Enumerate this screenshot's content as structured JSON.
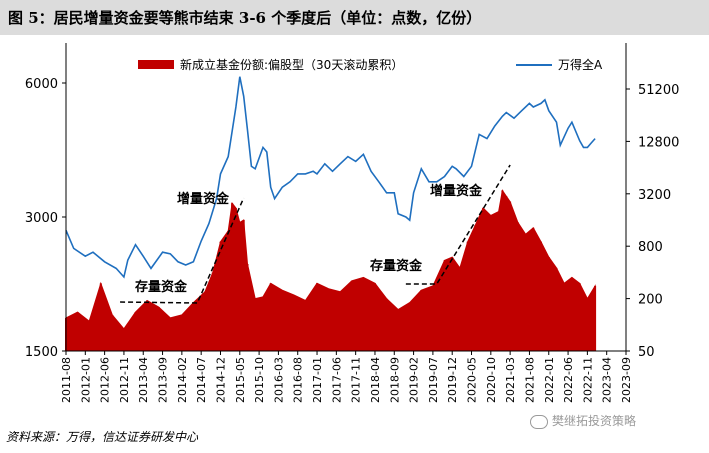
{
  "title": "图 5：居民增量资金要等熊市结束 3-6 个季度后（单位：点数，亿份）",
  "source": "资料来源：万得，信达证券研发中心",
  "watermark": "樊继拓投资策略",
  "chart_data": {
    "type": "bar+line",
    "x_ticks": [
      "2011-08",
      "2012-01",
      "2012-06",
      "2012-11",
      "2013-04",
      "2013-09",
      "2014-02",
      "2014-07",
      "2014-12",
      "2015-05",
      "2015-10",
      "2016-03",
      "2016-08",
      "2017-01",
      "2017-06",
      "2017-11",
      "2018-04",
      "2018-09",
      "2019-02",
      "2019-07",
      "2019-12",
      "2020-05",
      "2020-10",
      "2021-03",
      "2021-08",
      "2022-01",
      "2022-06",
      "2022-11",
      "2023-04",
      "2023-09"
    ],
    "left_axis": {
      "ticks": [
        "6000",
        "3000",
        "1500"
      ],
      "values": [
        6000,
        3000,
        1500
      ],
      "scale": "log"
    },
    "right_axis": {
      "ticks": [
        "51200",
        "12800",
        "3200",
        "800",
        "200",
        "50"
      ],
      "values": [
        51200,
        12800,
        3200,
        800,
        200,
        50
      ],
      "scale": "log"
    },
    "legend": {
      "bar": "新成立基金份额:偏股型（30天滚动累积）",
      "line": "万得全A",
      "position": "top"
    },
    "colors": {
      "bar": "#c00000",
      "line": "#1f6fbf",
      "dashed": "#000000"
    },
    "annotations": [
      {
        "text": "存量资金",
        "x": "2013-06"
      },
      {
        "text": "增量资金",
        "x": "2014-12"
      },
      {
        "text": "存量资金",
        "x": "2019-03"
      },
      {
        "text": "增量资金",
        "x": "2020-09"
      }
    ],
    "series": [
      {
        "name": "万得全A",
        "x": [
          "2011-08",
          "2011-10",
          "2012-01",
          "2012-03",
          "2012-06",
          "2012-09",
          "2012-11",
          "2012-12",
          "2013-02",
          "2013-04",
          "2013-06",
          "2013-09",
          "2013-11",
          "2014-01",
          "2014-03",
          "2014-05",
          "2014-07",
          "2014-09",
          "2014-11",
          "2014-12",
          "2015-02",
          "2015-04",
          "2015-05",
          "2015-06",
          "2015-07",
          "2015-08",
          "2015-09",
          "2015-11",
          "2015-12",
          "2016-01",
          "2016-02",
          "2016-04",
          "2016-06",
          "2016-08",
          "2016-10",
          "2016-12",
          "2017-01",
          "2017-03",
          "2017-05",
          "2017-07",
          "2017-09",
          "2017-11",
          "2018-01",
          "2018-03",
          "2018-05",
          "2018-07",
          "2018-09",
          "2018-10",
          "2018-12",
          "2019-01",
          "2019-02",
          "2019-04",
          "2019-06",
          "2019-08",
          "2019-10",
          "2019-12",
          "2020-01",
          "2020-03",
          "2020-05",
          "2020-07",
          "2020-09",
          "2020-11",
          "2021-01",
          "2021-02",
          "2021-04",
          "2021-06",
          "2021-08",
          "2021-09",
          "2021-11",
          "2021-12",
          "2022-01",
          "2022-03",
          "2022-04",
          "2022-06",
          "2022-07",
          "2022-09",
          "2022-10",
          "2022-11",
          "2022-12",
          "2023-01"
        ],
        "y": [
          2800,
          2550,
          2450,
          2500,
          2380,
          2300,
          2200,
          2400,
          2600,
          2450,
          2300,
          2500,
          2480,
          2380,
          2340,
          2380,
          2650,
          2900,
          3300,
          3750,
          4100,
          5300,
          6200,
          5600,
          4700,
          3900,
          3850,
          4300,
          4200,
          3500,
          3300,
          3500,
          3600,
          3750,
          3750,
          3800,
          3750,
          3950,
          3800,
          3950,
          4100,
          4000,
          4150,
          3800,
          3600,
          3400,
          3400,
          3050,
          3000,
          2950,
          3400,
          3850,
          3600,
          3600,
          3700,
          3900,
          3850,
          3700,
          3900,
          4600,
          4500,
          4800,
          5050,
          5150,
          5000,
          5200,
          5400,
          5300,
          5400,
          5500,
          5200,
          4900,
          4350,
          4750,
          4900,
          4450,
          4300,
          4300,
          4400,
          4500
        ]
      },
      {
        "name": "新成立基金份额:偏股型（30天滚动累积）",
        "x": [
          "2011-08",
          "2011-11",
          "2012-02",
          "2012-05",
          "2012-08",
          "2012-11",
          "2013-02",
          "2013-05",
          "2013-08",
          "2013-11",
          "2014-02",
          "2014-05",
          "2014-08",
          "2014-10",
          "2014-12",
          "2015-02",
          "2015-03",
          "2015-04",
          "2015-05",
          "2015-06",
          "2015-07",
          "2015-09",
          "2015-11",
          "2016-01",
          "2016-04",
          "2016-07",
          "2016-10",
          "2017-01",
          "2017-04",
          "2017-07",
          "2017-10",
          "2018-01",
          "2018-04",
          "2018-07",
          "2018-10",
          "2019-01",
          "2019-04",
          "2019-07",
          "2019-10",
          "2019-12",
          "2020-02",
          "2020-04",
          "2020-06",
          "2020-08",
          "2020-10",
          "2020-12",
          "2021-01",
          "2021-02",
          "2021-03",
          "2021-05",
          "2021-07",
          "2021-09",
          "2021-11",
          "2022-01",
          "2022-03",
          "2022-05",
          "2022-07",
          "2022-09",
          "2022-11",
          "2023-01"
        ],
        "y": [
          120,
          140,
          110,
          300,
          130,
          90,
          140,
          190,
          160,
          120,
          130,
          180,
          240,
          400,
          900,
          1200,
          2500,
          2200,
          1500,
          1600,
          500,
          200,
          210,
          300,
          250,
          220,
          190,
          300,
          260,
          240,
          320,
          350,
          300,
          200,
          150,
          180,
          250,
          280,
          550,
          600,
          450,
          900,
          1400,
          2200,
          1800,
          2000,
          3500,
          3000,
          2600,
          1500,
          1100,
          1300,
          900,
          600,
          450,
          300,
          350,
          300,
          200,
          280
        ]
      }
    ]
  }
}
